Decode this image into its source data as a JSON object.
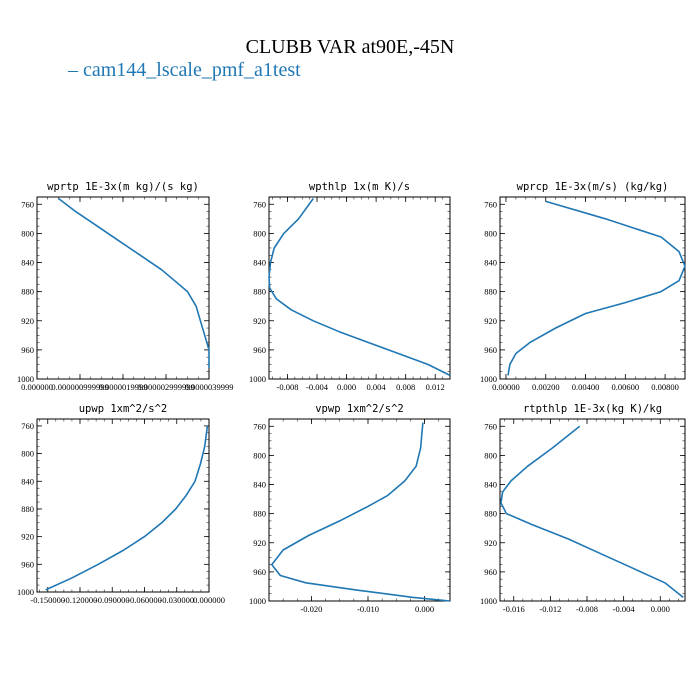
{
  "title": "CLUBB VAR at90E,-45N",
  "legend": {
    "label": "cam144_lscale_pmf_a1test",
    "color": "#1f77b4"
  },
  "chart_data": [
    {
      "type": "line",
      "title": "wprtp  1E-3x(m kg)/(s kg)",
      "xlim": [
        0,
        4e-06
      ],
      "ylim": [
        1000,
        750
      ],
      "ytick_labels": [
        "760",
        "800",
        "840",
        "880",
        "920",
        "960",
        "1000"
      ],
      "ytick_values": [
        760,
        800,
        840,
        880,
        920,
        960,
        1000
      ],
      "xtick_labels": [
        "0.000000",
        "0.000000999999",
        "0.0000019999",
        "0.000002999999",
        "0.0000039999"
      ],
      "xtick_values": [
        0,
        1e-06,
        2e-06,
        3e-06,
        4e-06
      ],
      "series": [
        {
          "x": [
            5e-07,
            9e-07,
            1.4e-06,
            1.9e-06,
            2.4e-06,
            2.9e-06,
            3.2e-06,
            3.5e-06,
            3.7e-06,
            3.8e-06,
            3.9e-06,
            4e-06,
            4e-06
          ],
          "y": [
            752,
            770,
            790,
            810,
            830,
            850,
            865,
            880,
            900,
            920,
            940,
            960,
            985
          ]
        }
      ]
    },
    {
      "type": "line",
      "title": "wpthlp  1x(m K)/s",
      "xlim": [
        -0.0105,
        0.014
      ],
      "ylim": [
        1000,
        750
      ],
      "ytick_labels": [
        "760",
        "800",
        "840",
        "880",
        "920",
        "960",
        "1000"
      ],
      "ytick_values": [
        760,
        800,
        840,
        880,
        920,
        960,
        1000
      ],
      "xtick_labels": [
        "-0.008",
        "-0.004",
        "0.000",
        "0.004",
        "0.008",
        "0.012"
      ],
      "xtick_values": [
        -0.008,
        -0.004,
        0,
        0.004,
        0.008,
        0.012
      ],
      "series": [
        {
          "x": [
            -0.0045,
            -0.0065,
            -0.0085,
            -0.0098,
            -0.0103,
            -0.0105,
            -0.0104,
            -0.0095,
            -0.0075,
            -0.0045,
            -0.001,
            0.003,
            0.007,
            0.011,
            0.014
          ],
          "y": [
            752,
            780,
            800,
            820,
            840,
            860,
            875,
            890,
            905,
            920,
            935,
            950,
            965,
            980,
            995
          ]
        }
      ]
    },
    {
      "type": "line",
      "title": "wprcp  1E-3x(m/s) (kg/kg)",
      "xlim": [
        -0.0003,
        0.009
      ],
      "ylim": [
        1000,
        750
      ],
      "ytick_labels": [
        "760",
        "800",
        "840",
        "880",
        "920",
        "960",
        "1000"
      ],
      "ytick_values": [
        760,
        800,
        840,
        880,
        920,
        960,
        1000
      ],
      "xtick_labels": [
        "0.00000",
        "0.00200",
        "0.00400",
        "0.00600",
        "0.00800"
      ],
      "xtick_values": [
        0,
        0.002,
        0.004,
        0.006,
        0.008
      ],
      "series": [
        {
          "x": [
            0.002,
            0.005,
            0.0078,
            0.0087,
            0.009,
            0.0087,
            0.0078,
            0.006,
            0.004,
            0.0025,
            0.0012,
            0.0005,
            0.0002,
            0.0001
          ],
          "y": [
            756,
            780,
            805,
            825,
            845,
            865,
            880,
            895,
            910,
            930,
            950,
            965,
            980,
            995
          ]
        }
      ]
    },
    {
      "type": "line",
      "title": "upwp  1xm^2/s^2",
      "xlim": [
        -0.16,
        0.0
      ],
      "ylim": [
        1000,
        750
      ],
      "ytick_labels": [
        "760",
        "800",
        "840",
        "880",
        "920",
        "960",
        "1000"
      ],
      "ytick_values": [
        760,
        800,
        840,
        880,
        920,
        960,
        1000
      ],
      "xtick_labels": [
        "-0.150000",
        "-0.120000",
        "-0.090000",
        "-0.060000",
        "-0.030000",
        "0.000000"
      ],
      "xtick_values": [
        -0.15,
        -0.12,
        -0.09,
        -0.06,
        -0.03,
        0
      ],
      "series": [
        {
          "x": [
            -0.0015,
            -0.004,
            -0.008,
            -0.013,
            -0.021,
            -0.031,
            -0.044,
            -0.06,
            -0.08,
            -0.103,
            -0.128,
            -0.152
          ],
          "y": [
            760,
            790,
            815,
            840,
            860,
            880,
            900,
            920,
            940,
            960,
            980,
            997
          ]
        }
      ]
    },
    {
      "type": "line",
      "title": "vpwp  1xm^2/s^2",
      "xlim": [
        -0.0275,
        0.0045
      ],
      "ylim": [
        1000,
        750
      ],
      "ytick_labels": [
        "760",
        "800",
        "840",
        "880",
        "920",
        "960",
        "1000"
      ],
      "ytick_values": [
        760,
        800,
        840,
        880,
        920,
        960,
        1000
      ],
      "xtick_labels": [
        "-0.020",
        "-0.010",
        "0.000"
      ],
      "xtick_values": [
        -0.02,
        -0.01,
        0
      ],
      "series": [
        {
          "x": [
            -0.0003,
            -0.0007,
            -0.0015,
            -0.0035,
            -0.0065,
            -0.01,
            -0.015,
            -0.0205,
            -0.025,
            -0.027,
            -0.0255,
            -0.021,
            -0.012,
            -0.002,
            0.0045
          ],
          "y": [
            755,
            790,
            815,
            835,
            855,
            870,
            890,
            910,
            930,
            950,
            965,
            975,
            985,
            995,
            1000
          ]
        }
      ]
    },
    {
      "type": "line",
      "title": "rtpthlp  1E-3x(kg K)/kg",
      "xlim": [
        -0.0175,
        0.0027
      ],
      "ylim": [
        1000,
        750
      ],
      "ytick_labels": [
        "760",
        "800",
        "840",
        "880",
        "920",
        "960",
        "1000"
      ],
      "ytick_values": [
        760,
        800,
        840,
        880,
        920,
        960,
        1000
      ],
      "xtick_labels": [
        "-0.016",
        "-0.012",
        "-0.008",
        "-0.004",
        "0.000"
      ],
      "xtick_values": [
        -0.016,
        -0.012,
        -0.008,
        -0.004,
        0
      ],
      "series": [
        {
          "x": [
            -0.0088,
            -0.0118,
            -0.0145,
            -0.0163,
            -0.0172,
            -0.0174,
            -0.0168,
            -0.014,
            -0.01,
            -0.0065,
            -0.003,
            0.0005,
            0.0025
          ],
          "y": [
            760,
            790,
            815,
            835,
            850,
            865,
            880,
            895,
            915,
            935,
            955,
            975,
            995
          ]
        }
      ]
    }
  ]
}
